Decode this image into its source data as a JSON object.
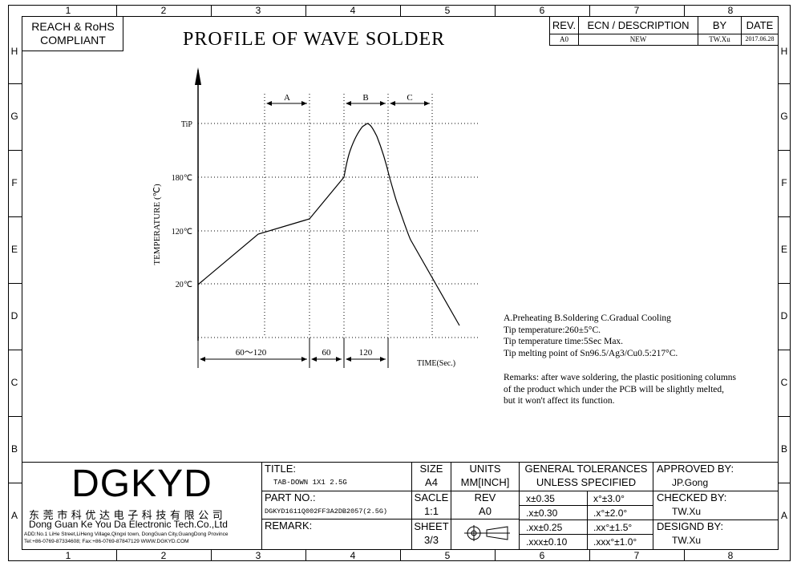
{
  "zones_top": [
    "1",
    "2",
    "3",
    "4",
    "5",
    "6",
    "7",
    "8"
  ],
  "zones_bottom": [
    "1",
    "2",
    "3",
    "4",
    "5",
    "6",
    "7",
    "8"
  ],
  "zones_side": [
    "H",
    "G",
    "F",
    "E",
    "D",
    "C",
    "B",
    "A"
  ],
  "compliance": {
    "line1": "REACH & RoHS",
    "line2": "COMPLIANT"
  },
  "title": "PROFILE OF WAVE SOLDER",
  "revision_table": {
    "headers": {
      "rev": "REV.",
      "ecn": "ECN / DESCRIPTION",
      "by": "BY",
      "date": "DATE"
    },
    "row": {
      "rev": "A0",
      "ecn": "NEW",
      "by": "TW.Xu",
      "date": "2017.06.28"
    }
  },
  "chart_data": {
    "type": "line",
    "ylabel": "TEMPERATURE (℃)",
    "xlabel": "TIME(Sec.)",
    "y_ticks": [
      "20℃",
      "120℃",
      "180℃",
      "TiP"
    ],
    "phases": [
      "A",
      "B",
      "C"
    ],
    "x_spans": [
      "60～120",
      "60",
      "120"
    ]
  },
  "notes": {
    "line1": "A.Preheating  B.Soldering  C.Gradual Cooling",
    "line2": "Tip temperature:260±5°C.",
    "line3": "Tip temperature time:5Sec Max.",
    "line4": "Tip melting point of Sn96.5/Ag3/Cu0.5:217°C.",
    "remark1": "Remarks: after wave soldering, the plastic positioning columns",
    "remark2": "of the product  which under the PCB will be slightly melted,",
    "remark3": "but it won't affect its function."
  },
  "title_block": {
    "logo": "DGKYD",
    "company_cn": "东莞市科优达电子科技有限公司",
    "company_en": "Dong Guan Ke You Da Electronic Tech.Co.,Ltd",
    "address": "ADD:No.1 LiHe Street,LiHeng Village,Qingxi town, DongGuan City,GuangDong Province",
    "contact": "Tel:+86-0769-87334608; Fax:+86-0769-87847129  WWW.DGKYD.COM",
    "title_label": "TITLE:",
    "title_value": "TAB-DOWN 1X1 2.5G",
    "part_label": "PART NO.:",
    "part_value": "DGKYD1611Q002FF3A2DB2057(2.5G)",
    "remark_label": "REMARK:",
    "size_label": "SIZE",
    "size_value": "A4",
    "units_label": "UNITS",
    "units_value": "MM[INCH]",
    "scale_label": "SACLE",
    "scale_value": "1:1",
    "rev_label": "REV",
    "rev_value": "A0",
    "sheet_label": "SHEET",
    "sheet_value": "3/3",
    "tol_line1": "GENERAL TOLERANCES",
    "tol_line2": "UNLESS SPECIFIED",
    "tolerances": [
      "x±0.35",
      "x°±3.0°",
      ".x±0.30",
      ".x°±2.0°",
      ".xx±0.25",
      ".xx°±1.5°",
      ".xxx±0.10",
      ".xxx°±1.0°"
    ],
    "approved_label": "APPROVED BY:",
    "approved_value": "JP.Gong",
    "checked_label": "CHECKED BY:",
    "checked_value": "TW.Xu",
    "designed_label": "DESIGND BY:",
    "designed_value": "TW.Xu"
  }
}
